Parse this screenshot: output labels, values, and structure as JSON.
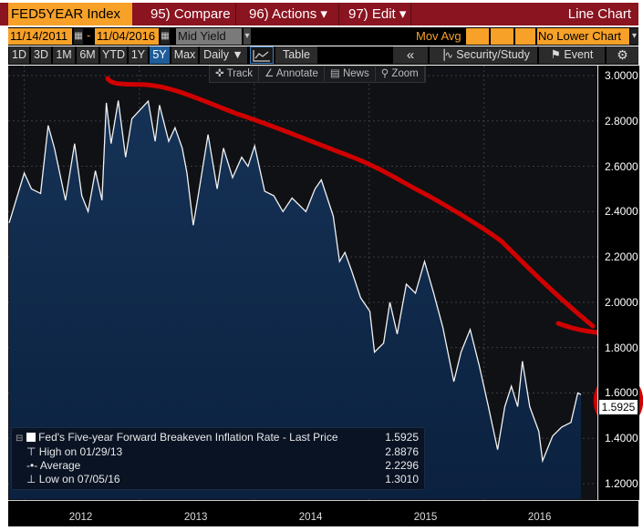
{
  "header": {
    "ticker": "FED5YEAR Index",
    "menu": [
      "95) Compare",
      "96) Actions ▾",
      "97) Edit ▾"
    ],
    "view_title": "Line Chart"
  },
  "controls": {
    "start_date": "11/14/2011",
    "date_sep": "-",
    "end_date": "11/04/2016",
    "field": "Mid Yield",
    "mov_avg_label": "Mov Avg",
    "lower_chart": "No Lower Chart",
    "periods": [
      "1D",
      "3D",
      "1M",
      "6M",
      "YTD",
      "1Y",
      "5Y",
      "Max"
    ],
    "selected_period": "5Y",
    "frequency": "Daily ▼",
    "table_label": "Table",
    "collapse_label": "«",
    "security_study": "Security/Study",
    "event": "Event",
    "chart_tools": [
      "Track",
      "Annotate",
      "News",
      "Zoom"
    ]
  },
  "legend": {
    "series_label": "Fed's Five-year Forward Breakeven Inflation Rate - Last Price",
    "last_price": "1.5925",
    "high_label": "High on 01/29/13",
    "high_value": "2.8876",
    "avg_label": "Average",
    "avg_value": "2.2296",
    "low_label": "Low on 07/05/16",
    "low_value": "1.3010"
  },
  "colors": {
    "brand_orange": "#f7a128",
    "header_red": "#8a1420",
    "line": "#ffffff",
    "area_fill": "#0f2a4c",
    "annotation_red": "#d00000"
  },
  "chart_data": {
    "type": "area",
    "x_type": "date",
    "xlim": [
      "2011-11-14",
      "2016-11-04"
    ],
    "ylim": [
      1.2,
      3.0
    ],
    "y_axis_position": "right",
    "grid": true,
    "legend_placement": "bottom-left",
    "x_tick_labels": [
      "2012",
      "2013",
      "2014",
      "2015",
      "2016"
    ],
    "y_tick_labels": [
      "3.0000",
      "2.8000",
      "2.6000",
      "2.4000",
      "2.2000",
      "2.0000",
      "1.8000",
      "1.6000",
      "1.4000",
      "1.2000"
    ],
    "last_value_label": "1.5925",
    "series": [
      {
        "name": "Fed's Five-year Forward Breakeven Inflation Rate",
        "x": [
          "2011-11-14",
          "2012-01-01",
          "2012-01-24",
          "2012-02-22",
          "2012-03-17",
          "2012-04-06",
          "2012-05-11",
          "2012-06-09",
          "2012-07-02",
          "2012-07-22",
          "2012-08-14",
          "2012-09-04",
          "2012-09-18",
          "2012-10-03",
          "2012-10-26",
          "2012-11-18",
          "2012-12-08",
          "2013-01-29",
          "2013-02-20",
          "2013-03-06",
          "2013-04-04",
          "2013-04-24",
          "2013-05-17",
          "2013-06-01",
          "2013-06-21",
          "2013-07-08",
          "2013-08-07",
          "2013-09-05",
          "2013-09-25",
          "2013-10-24",
          "2013-11-22",
          "2013-12-12",
          "2014-01-02",
          "2014-02-03",
          "2014-03-04",
          "2014-04-02",
          "2014-05-01",
          "2014-06-14",
          "2014-07-13",
          "2014-08-02",
          "2014-09-09",
          "2014-09-29",
          "2014-10-16",
          "2014-11-06",
          "2014-12-05",
          "2015-01-03",
          "2015-01-18",
          "2015-02-16",
          "2015-03-08",
          "2015-03-31",
          "2015-04-29",
          "2015-05-28",
          "2015-06-26",
          "2015-07-25",
          "2015-08-23",
          "2015-09-27",
          "2015-10-20",
          "2015-11-18",
          "2015-12-17",
          "2016-01-15",
          "2016-02-13",
          "2016-03-07",
          "2016-03-28",
          "2016-04-17",
          "2016-05-02",
          "2016-05-25",
          "2016-06-23",
          "2016-07-05",
          "2016-08-06",
          "2016-09-04",
          "2016-10-03",
          "2016-10-25",
          "2016-11-04"
        ],
        "y": [
          2.35,
          2.57,
          2.5,
          2.48,
          2.78,
          2.68,
          2.45,
          2.7,
          2.47,
          2.4,
          2.58,
          2.45,
          2.88,
          2.7,
          2.89,
          2.64,
          2.81,
          2.8876,
          2.71,
          2.87,
          2.71,
          2.77,
          2.68,
          2.57,
          2.34,
          2.48,
          2.74,
          2.5,
          2.68,
          2.55,
          2.64,
          2.6,
          2.69,
          2.49,
          2.47,
          2.4,
          2.46,
          2.4,
          2.5,
          2.54,
          2.38,
          2.18,
          2.22,
          2.14,
          2.02,
          1.96,
          1.78,
          1.82,
          2.0,
          1.86,
          2.08,
          2.04,
          2.18,
          2.04,
          1.89,
          1.65,
          1.78,
          1.88,
          1.72,
          1.54,
          1.35,
          1.54,
          1.63,
          1.54,
          1.74,
          1.54,
          1.43,
          1.301,
          1.41,
          1.45,
          1.47,
          1.6,
          1.5925
        ]
      }
    ]
  }
}
